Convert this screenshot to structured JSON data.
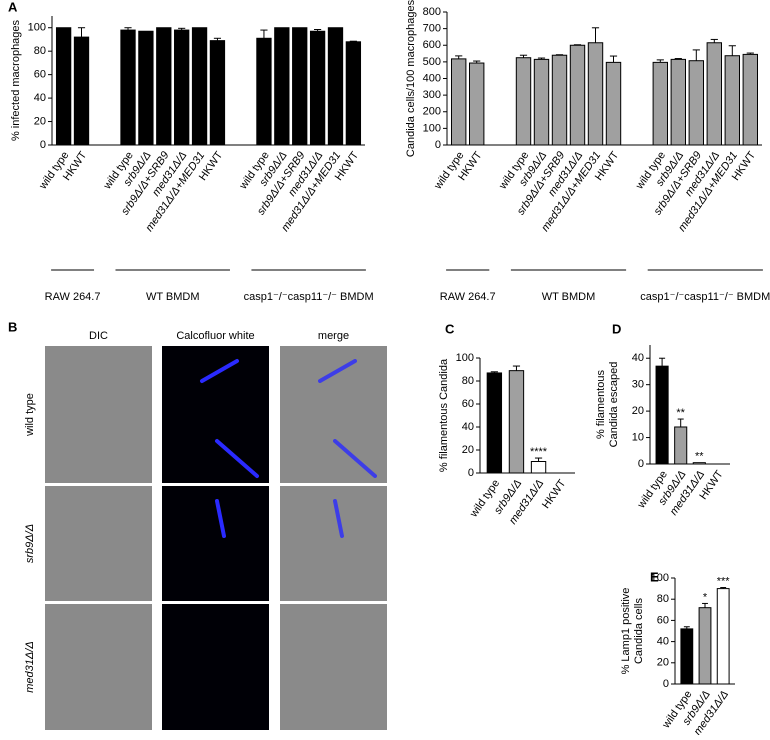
{
  "chart_data": [
    {
      "type": "bar",
      "panel": "A",
      "y_label": "% infected macrophages",
      "color": "#000000",
      "ylim": [
        0,
        110
      ],
      "yticks": [
        0,
        20,
        40,
        60,
        80,
        100
      ],
      "groups": [
        {
          "label": "RAW 264.7",
          "categories": [
            "wild type",
            "HKWT"
          ],
          "values": [
            100,
            92
          ],
          "errors": [
            null,
            8
          ]
        },
        {
          "label": "WT BMDM",
          "categories": [
            "wild type",
            "srb9Δ/Δ",
            "srb9Δ/Δ+SRB9",
            "med31Δ/Δ",
            "med31Δ/Δ+MED31",
            "HKWT"
          ],
          "values": [
            98,
            97,
            100,
            98,
            100,
            89
          ],
          "errors": [
            2,
            null,
            null,
            1.5,
            null,
            2
          ]
        },
        {
          "label": "casp1⁻/⁻casp11⁻/⁻ BMDM",
          "categories": [
            "wild type",
            "srb9Δ/Δ",
            "srb9Δ/Δ+SRB9",
            "med31Δ/Δ",
            "med31Δ/Δ+MED31",
            "HKWT"
          ],
          "values": [
            91,
            100,
            100,
            97,
            100,
            88
          ],
          "errors": [
            7,
            null,
            null,
            1.5,
            null,
            0.5
          ]
        }
      ]
    },
    {
      "type": "bar",
      "y_label": "Candida cells/100 macrophages",
      "color": "#a0a0a0",
      "ylim": [
        0,
        800
      ],
      "yticks": [
        0,
        100,
        200,
        300,
        400,
        500,
        600,
        700,
        800
      ],
      "groups": [
        {
          "label": "RAW 264.7",
          "categories": [
            "wild type",
            "HKWT"
          ],
          "values": [
            518,
            493
          ],
          "errors": [
            18,
            12
          ]
        },
        {
          "label": "WT BMDM",
          "categories": [
            "wild type",
            "srb9Δ/Δ",
            "srb9Δ/Δ+SRB9",
            "med31Δ/Δ",
            "med31Δ/Δ+MED31",
            "HKWT"
          ],
          "values": [
            525,
            515,
            540,
            600,
            615,
            497
          ],
          "errors": [
            15,
            8,
            3,
            3,
            90,
            38
          ]
        },
        {
          "label": "casp1⁻/⁻casp11⁻/⁻ BMDM",
          "categories": [
            "wild type",
            "srb9Δ/Δ",
            "srb9Δ/Δ+SRB9",
            "med31Δ/Δ",
            "med31Δ/Δ+MED31",
            "HKWT"
          ],
          "values": [
            497,
            515,
            507,
            615,
            537,
            545
          ],
          "errors": [
            15,
            5,
            65,
            20,
            60,
            8
          ]
        }
      ]
    },
    {
      "type": "bar",
      "panel": "C",
      "y_label": [
        "% filamentous Candida"
      ],
      "ylim": [
        0,
        100
      ],
      "yticks": [
        0,
        20,
        40,
        60,
        80,
        100
      ],
      "categories": [
        "wild type",
        "srb9Δ/Δ",
        "med31Δ/Δ",
        "HKWT"
      ],
      "values": [
        87,
        89,
        10,
        0
      ],
      "errors": [
        1,
        4,
        3,
        null
      ],
      "colors": [
        "#000000",
        "#a0a0a0",
        "#ffffff",
        "#ffffff"
      ],
      "annotations": [
        null,
        null,
        "****",
        null
      ]
    },
    {
      "type": "bar",
      "panel": "D",
      "y_label": [
        "% filamentous",
        "Candida escaped"
      ],
      "ylim": [
        0,
        45
      ],
      "yticks": [
        0,
        10,
        20,
        30,
        40
      ],
      "categories": [
        "wild type",
        "srb9Δ/Δ",
        "med31Δ/Δ",
        "HKWT"
      ],
      "values": [
        37,
        14,
        0.5,
        0
      ],
      "errors": [
        3,
        3,
        null,
        null
      ],
      "colors": [
        "#000000",
        "#a0a0a0",
        "#ffffff",
        "#ffffff"
      ],
      "annotations": [
        null,
        "**",
        "**",
        null
      ]
    },
    {
      "type": "bar",
      "panel": "E",
      "y_label": [
        "% Lamp1 positive",
        "Candida cells"
      ],
      "ylim": [
        0,
        100
      ],
      "yticks": [
        0,
        20,
        40,
        60,
        80,
        100
      ],
      "categories": [
        "wild type",
        "srb9Δ/Δ",
        "med31Δ/Δ"
      ],
      "values": [
        52,
        72,
        90
      ],
      "errors": [
        2,
        4,
        1
      ],
      "colors": [
        "#000000",
        "#a0a0a0",
        "#ffffff"
      ],
      "annotations": [
        null,
        "*",
        "***"
      ]
    }
  ],
  "image_panel": {
    "panel": "B",
    "columns": [
      "DIC",
      "Calcofluor white",
      "merge"
    ],
    "rows": [
      "wild type",
      "srb9Δ/Δ",
      "med31Δ/Δ"
    ]
  }
}
